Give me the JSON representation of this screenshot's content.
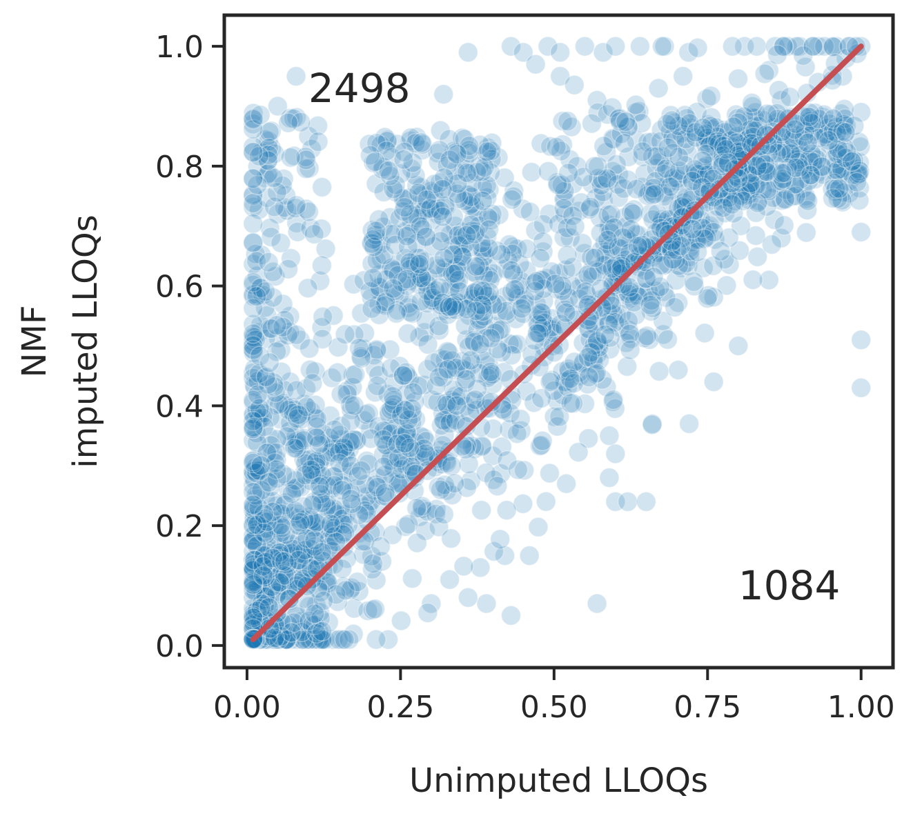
{
  "chart_data": {
    "type": "scatter",
    "title": "",
    "xlabel": "Unimputed LLOQs",
    "ylabel_lines": [
      "NMF",
      "imputed LLOQs"
    ],
    "xlim": [
      -0.037,
      1.052
    ],
    "ylim": [
      -0.037,
      1.052
    ],
    "xticks": [
      0.0,
      0.25,
      0.5,
      0.75,
      1.0
    ],
    "xtick_labels": [
      "0.00",
      "0.25",
      "0.50",
      "0.75",
      "1.00"
    ],
    "yticks": [
      0.0,
      0.2,
      0.4,
      0.6,
      0.8,
      1.0
    ],
    "ytick_labels": [
      "0.0",
      "0.2",
      "0.4",
      "0.6",
      "0.8",
      "1.0"
    ],
    "grid": false,
    "point_color": "#1f77b4",
    "point_alpha": 0.2,
    "reference_line": {
      "x": [
        0.01,
        1.0
      ],
      "y": [
        0.01,
        1.0
      ],
      "color": "#c44e52"
    },
    "annotations": [
      {
        "text": "2498",
        "x": 0.1,
        "y": 0.93
      },
      {
        "text": "1084",
        "x": 0.8,
        "y": 0.1
      }
    ],
    "sample_points": [
      [
        0.08,
        0.95
      ],
      [
        0.36,
        0.99
      ],
      [
        0.43,
        1.0
      ],
      [
        0.45,
        0.99
      ],
      [
        0.49,
        1.0
      ],
      [
        0.51,
        0.99
      ],
      [
        0.55,
        1.0
      ],
      [
        0.58,
        0.99
      ],
      [
        0.6,
        1.0
      ],
      [
        0.64,
        1.0
      ],
      [
        0.68,
        1.0
      ],
      [
        0.81,
        1.0
      ],
      [
        0.83,
        1.0
      ],
      [
        0.86,
        1.0
      ],
      [
        0.9,
        1.0
      ],
      [
        0.93,
        1.0
      ],
      [
        0.96,
        1.0
      ],
      [
        1.0,
        1.0
      ],
      [
        0.32,
        0.92
      ],
      [
        0.47,
        0.97
      ],
      [
        0.51,
        0.95
      ],
      [
        0.71,
        0.95
      ],
      [
        0.85,
        0.96
      ],
      [
        0.93,
        0.94
      ],
      [
        0.97,
        0.95
      ],
      [
        0.57,
        0.91
      ],
      [
        0.67,
        0.93
      ],
      [
        0.87,
        0.91
      ],
      [
        1.0,
        0.89
      ],
      [
        0.91,
        0.83
      ],
      [
        0.93,
        0.79
      ],
      [
        0.91,
        0.75
      ],
      [
        0.97,
        0.74
      ],
      [
        1.0,
        0.69
      ],
      [
        0.85,
        0.61
      ],
      [
        0.87,
        0.68
      ],
      [
        1.0,
        0.51
      ],
      [
        1.0,
        0.43
      ],
      [
        0.8,
        0.5
      ],
      [
        0.76,
        0.44
      ],
      [
        0.72,
        0.37
      ],
      [
        0.66,
        0.37
      ],
      [
        0.59,
        0.35
      ],
      [
        0.6,
        0.32
      ],
      [
        0.59,
        0.28
      ],
      [
        0.6,
        0.24
      ],
      [
        0.62,
        0.24
      ],
      [
        0.65,
        0.24
      ],
      [
        0.52,
        0.27
      ],
      [
        0.46,
        0.15
      ],
      [
        0.42,
        0.15
      ],
      [
        0.38,
        0.13
      ],
      [
        0.39,
        0.07
      ],
      [
        0.43,
        0.05
      ],
      [
        0.57,
        0.07
      ],
      [
        0.36,
        0.08
      ],
      [
        0.33,
        0.11
      ],
      [
        0.3,
        0.07
      ],
      [
        0.23,
        0.01
      ],
      [
        0.14,
        0.01
      ],
      [
        0.05,
        0.9
      ],
      [
        0.04,
        0.83
      ],
      [
        0.07,
        0.88
      ],
      [
        0.1,
        0.85
      ],
      [
        0.03,
        0.78
      ],
      [
        0.05,
        0.72
      ]
    ]
  }
}
